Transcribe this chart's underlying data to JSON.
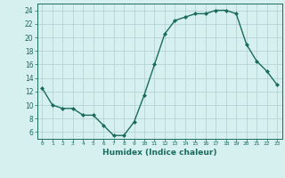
{
  "x": [
    0,
    1,
    2,
    3,
    4,
    5,
    6,
    7,
    8,
    9,
    10,
    11,
    12,
    13,
    14,
    15,
    16,
    17,
    18,
    19,
    20,
    21,
    22,
    23
  ],
  "y": [
    12.5,
    10.0,
    9.5,
    9.5,
    8.5,
    8.5,
    7.0,
    5.5,
    5.5,
    7.5,
    11.5,
    16.0,
    20.5,
    22.5,
    23.0,
    23.5,
    23.5,
    24.0,
    24.0,
    23.5,
    19.0,
    16.5,
    15.0,
    13.0
  ],
  "xlabel": "Humidex (Indice chaleur)",
  "ylabel": "",
  "title": "",
  "xlim": [
    -0.5,
    23.5
  ],
  "ylim": [
    5,
    25
  ],
  "yticks": [
    6,
    8,
    10,
    12,
    14,
    16,
    18,
    20,
    22,
    24
  ],
  "xticks": [
    0,
    1,
    2,
    3,
    4,
    5,
    6,
    7,
    8,
    9,
    10,
    11,
    12,
    13,
    14,
    15,
    16,
    17,
    18,
    19,
    20,
    21,
    22,
    23
  ],
  "line_color": "#1a6b5a",
  "marker_color": "#1a6b5a",
  "bg_color": "#d6f0f0",
  "grid_color": "#b0cece",
  "label_color": "#1a6b5a"
}
